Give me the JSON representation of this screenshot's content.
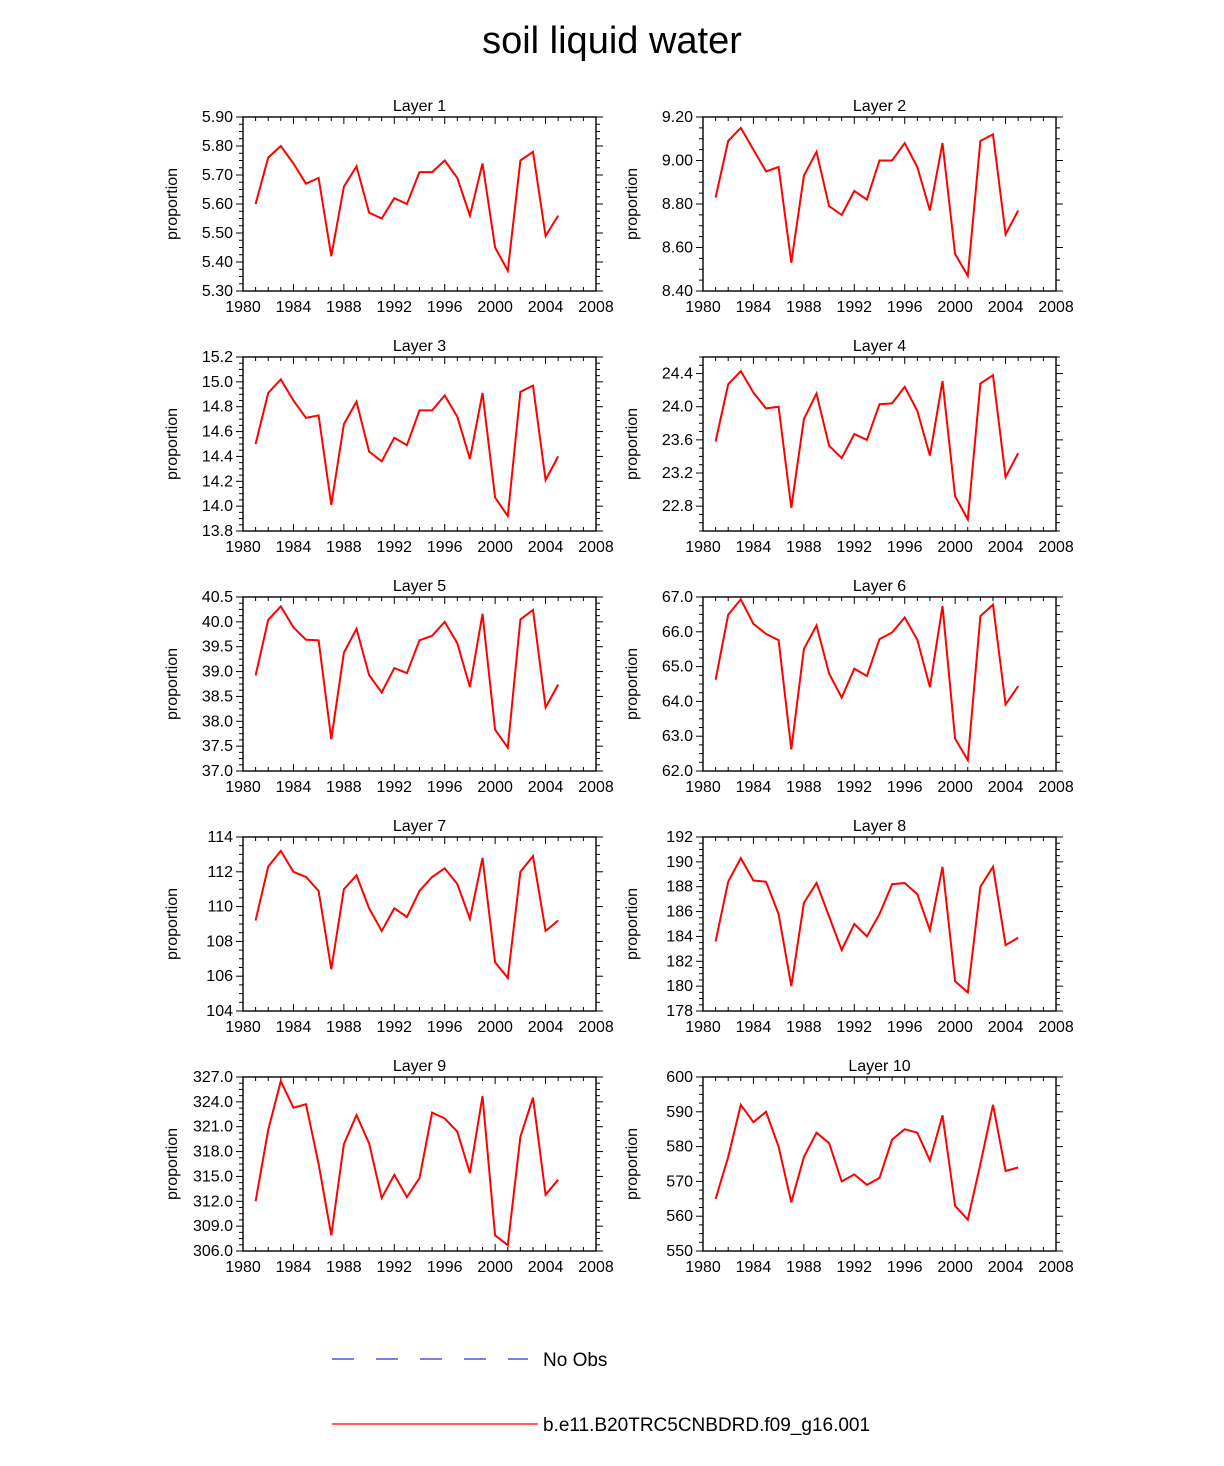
{
  "title": "soil liquid water",
  "colors": {
    "model_line": "#ff0000",
    "obs_line": "#3333cc",
    "axis": "#000000"
  },
  "legend": {
    "obs_label": "No Obs",
    "model_label": "b.e11.B20TRC5CNBDRD.f09_g16.001"
  },
  "chart_data": [
    {
      "type": "line",
      "title": "Layer 1",
      "ylabel": "proportion",
      "xlim": [
        1980,
        2008
      ],
      "ylim": [
        5.3,
        5.9
      ],
      "decimals": 2,
      "yticks": [
        5.3,
        5.4,
        5.5,
        5.6,
        5.7,
        5.8,
        5.9
      ],
      "xticks": [
        1980,
        1984,
        1988,
        1992,
        1996,
        2000,
        2004,
        2008
      ],
      "series": [
        {
          "name": "b.e11.B20TRC5CNBDRD.f09_g16.001",
          "x": [
            1981,
            1982,
            1983,
            1984,
            1985,
            1986,
            1987,
            1988,
            1989,
            1990,
            1991,
            1992,
            1993,
            1994,
            1995,
            1996,
            1997,
            1998,
            1999,
            2000,
            2001,
            2002,
            2003,
            2004,
            2005
          ],
          "values": [
            5.6,
            5.76,
            5.8,
            5.74,
            5.67,
            5.69,
            5.42,
            5.66,
            5.73,
            5.57,
            5.55,
            5.62,
            5.6,
            5.71,
            5.71,
            5.75,
            5.69,
            5.56,
            5.74,
            5.45,
            5.37,
            5.75,
            5.78,
            5.49,
            5.56
          ]
        }
      ]
    },
    {
      "type": "line",
      "title": "Layer 2",
      "ylabel": "proportion",
      "xlim": [
        1980,
        2008
      ],
      "ylim": [
        8.4,
        9.2
      ],
      "decimals": 2,
      "yticks": [
        8.4,
        8.6,
        8.8,
        9.0,
        9.2
      ],
      "xticks": [
        1980,
        1984,
        1988,
        1992,
        1996,
        2000,
        2004,
        2008
      ],
      "series": [
        {
          "name": "b.e11.B20TRC5CNBDRD.f09_g16.001",
          "x": [
            1981,
            1982,
            1983,
            1984,
            1985,
            1986,
            1987,
            1988,
            1989,
            1990,
            1991,
            1992,
            1993,
            1994,
            1995,
            1996,
            1997,
            1998,
            1999,
            2000,
            2001,
            2002,
            2003,
            2004,
            2005
          ],
          "values": [
            8.83,
            9.09,
            9.15,
            9.05,
            8.95,
            8.97,
            8.53,
            8.93,
            9.04,
            8.79,
            8.75,
            8.86,
            8.82,
            9.0,
            9.0,
            9.08,
            8.97,
            8.77,
            9.08,
            8.57,
            8.47,
            9.09,
            9.12,
            8.66,
            8.77
          ]
        }
      ]
    },
    {
      "type": "line",
      "title": "Layer 3",
      "ylabel": "proportion",
      "xlim": [
        1980,
        2008
      ],
      "ylim": [
        13.8,
        15.2
      ],
      "decimals": 1,
      "yticks": [
        13.8,
        14.0,
        14.2,
        14.4,
        14.6,
        14.8,
        15.0,
        15.2
      ],
      "xticks": [
        1980,
        1984,
        1988,
        1992,
        1996,
        2000,
        2004,
        2008
      ],
      "series": [
        {
          "name": "b.e11.B20TRC5CNBDRD.f09_g16.001",
          "x": [
            1981,
            1982,
            1983,
            1984,
            1985,
            1986,
            1987,
            1988,
            1989,
            1990,
            1991,
            1992,
            1993,
            1994,
            1995,
            1996,
            1997,
            1998,
            1999,
            2000,
            2001,
            2002,
            2003,
            2004,
            2005
          ],
          "values": [
            14.5,
            14.91,
            15.02,
            14.85,
            14.71,
            14.73,
            14.01,
            14.66,
            14.84,
            14.44,
            14.36,
            14.55,
            14.49,
            14.77,
            14.77,
            14.89,
            14.72,
            14.38,
            14.91,
            14.07,
            13.92,
            14.92,
            14.97,
            14.21,
            14.4
          ]
        }
      ]
    },
    {
      "type": "line",
      "title": "Layer 4",
      "ylabel": "proportion",
      "xlim": [
        1980,
        2008
      ],
      "ylim": [
        22.5,
        24.6
      ],
      "decimals": 1,
      "yticks": [
        22.8,
        23.2,
        23.6,
        24.0,
        24.4
      ],
      "xticks": [
        1980,
        1984,
        1988,
        1992,
        1996,
        2000,
        2004,
        2008
      ],
      "series": [
        {
          "name": "b.e11.B20TRC5CNBDRD.f09_g16.001",
          "x": [
            1981,
            1982,
            1983,
            1984,
            1985,
            1986,
            1987,
            1988,
            1989,
            1990,
            1991,
            1992,
            1993,
            1994,
            1995,
            1996,
            1997,
            1998,
            1999,
            2000,
            2001,
            2002,
            2003,
            2004,
            2005
          ],
          "values": [
            23.58,
            24.27,
            24.43,
            24.17,
            23.98,
            24.0,
            22.78,
            23.85,
            24.16,
            23.53,
            23.38,
            23.67,
            23.6,
            24.03,
            24.04,
            24.24,
            23.95,
            23.41,
            24.31,
            22.92,
            22.64,
            24.28,
            24.38,
            23.15,
            23.44
          ]
        }
      ]
    },
    {
      "type": "line",
      "title": "Layer 5",
      "ylabel": "proportion",
      "xlim": [
        1980,
        2008
      ],
      "ylim": [
        37.0,
        40.5
      ],
      "decimals": 1,
      "yticks": [
        37.0,
        37.5,
        38.0,
        38.5,
        39.0,
        39.5,
        40.0,
        40.5
      ],
      "xticks": [
        1980,
        1984,
        1988,
        1992,
        1996,
        2000,
        2004,
        2008
      ],
      "series": [
        {
          "name": "b.e11.B20TRC5CNBDRD.f09_g16.001",
          "x": [
            1981,
            1982,
            1983,
            1984,
            1985,
            1986,
            1987,
            1988,
            1989,
            1990,
            1991,
            1992,
            1993,
            1994,
            1995,
            1996,
            1997,
            1998,
            1999,
            2000,
            2001,
            2002,
            2003,
            2004,
            2005
          ],
          "values": [
            38.92,
            40.04,
            40.31,
            39.89,
            39.64,
            39.63,
            37.64,
            39.38,
            39.86,
            38.93,
            38.58,
            39.07,
            38.97,
            39.63,
            39.72,
            40.0,
            39.57,
            38.69,
            40.16,
            37.83,
            37.47,
            40.05,
            40.24,
            38.28,
            38.74
          ]
        }
      ]
    },
    {
      "type": "line",
      "title": "Layer 6",
      "ylabel": "proportion",
      "xlim": [
        1980,
        2008
      ],
      "ylim": [
        62.0,
        67.0
      ],
      "decimals": 1,
      "yticks": [
        62.0,
        63.0,
        64.0,
        65.0,
        66.0,
        67.0
      ],
      "xticks": [
        1980,
        1984,
        1988,
        1992,
        1996,
        2000,
        2004,
        2008
      ],
      "series": [
        {
          "name": "b.e11.B20TRC5CNBDRD.f09_g16.001",
          "x": [
            1981,
            1982,
            1983,
            1984,
            1985,
            1986,
            1987,
            1988,
            1989,
            1990,
            1991,
            1992,
            1993,
            1994,
            1995,
            1996,
            1997,
            1998,
            1999,
            2000,
            2001,
            2002,
            2003,
            2004,
            2005
          ],
          "values": [
            64.62,
            66.49,
            66.93,
            66.23,
            65.94,
            65.76,
            62.62,
            65.51,
            66.18,
            64.8,
            64.11,
            64.94,
            64.73,
            65.79,
            65.98,
            66.41,
            65.77,
            64.41,
            66.74,
            62.93,
            62.31,
            66.45,
            66.78,
            63.91,
            64.44
          ]
        }
      ]
    },
    {
      "type": "line",
      "title": "Layer 7",
      "ylabel": "proportion",
      "xlim": [
        1980,
        2008
      ],
      "ylim": [
        104,
        114
      ],
      "decimals": 0,
      "yticks": [
        104,
        106,
        108,
        110,
        112,
        114
      ],
      "xticks": [
        1980,
        1984,
        1988,
        1992,
        1996,
        2000,
        2004,
        2008
      ],
      "series": [
        {
          "name": "b.e11.B20TRC5CNBDRD.f09_g16.001",
          "x": [
            1981,
            1982,
            1983,
            1984,
            1985,
            1986,
            1987,
            1988,
            1989,
            1990,
            1991,
            1992,
            1993,
            1994,
            1995,
            1996,
            1997,
            1998,
            1999,
            2000,
            2001,
            2002,
            2003,
            2004,
            2005
          ],
          "values": [
            109.2,
            112.3,
            113.2,
            112.0,
            111.7,
            110.9,
            106.4,
            111.0,
            111.8,
            109.9,
            108.6,
            109.9,
            109.4,
            110.9,
            111.7,
            112.2,
            111.3,
            109.3,
            112.8,
            106.8,
            105.9,
            112.0,
            112.9,
            108.6,
            109.2
          ]
        }
      ]
    },
    {
      "type": "line",
      "title": "Layer 8",
      "ylabel": "proportion",
      "xlim": [
        1980,
        2008
      ],
      "ylim": [
        178,
        192
      ],
      "decimals": 0,
      "yticks": [
        178,
        180,
        182,
        184,
        186,
        188,
        190,
        192
      ],
      "xticks": [
        1980,
        1984,
        1988,
        1992,
        1996,
        2000,
        2004,
        2008
      ],
      "series": [
        {
          "name": "b.e11.B20TRC5CNBDRD.f09_g16.001",
          "x": [
            1981,
            1982,
            1983,
            1984,
            1985,
            1986,
            1987,
            1988,
            1989,
            1990,
            1991,
            1992,
            1993,
            1994,
            1995,
            1996,
            1997,
            1998,
            1999,
            2000,
            2001,
            2002,
            2003,
            2004,
            2005
          ],
          "values": [
            183.6,
            188.4,
            190.3,
            188.5,
            188.4,
            185.8,
            180.0,
            186.7,
            188.3,
            185.6,
            182.9,
            185.0,
            184.0,
            185.8,
            188.2,
            188.3,
            187.4,
            184.5,
            189.6,
            180.4,
            179.5,
            188.0,
            189.6,
            183.3,
            183.9
          ]
        }
      ]
    },
    {
      "type": "line",
      "title": "Layer 9",
      "ylabel": "proportion",
      "xlim": [
        1980,
        2008
      ],
      "ylim": [
        306.0,
        327.0
      ],
      "decimals": 1,
      "yticks": [
        306.0,
        309.0,
        312.0,
        315.0,
        318.0,
        321.0,
        324.0,
        327.0
      ],
      "xticks": [
        1980,
        1984,
        1988,
        1992,
        1996,
        2000,
        2004,
        2008
      ],
      "series": [
        {
          "name": "b.e11.B20TRC5CNBDRD.f09_g16.001",
          "x": [
            1981,
            1982,
            1983,
            1984,
            1985,
            1986,
            1987,
            1988,
            1989,
            1990,
            1991,
            1992,
            1993,
            1994,
            1995,
            1996,
            1997,
            1998,
            1999,
            2000,
            2001,
            2002,
            2003,
            2004,
            2005
          ],
          "values": [
            312.0,
            320.6,
            326.5,
            323.3,
            323.7,
            316.5,
            307.9,
            318.9,
            322.4,
            319.0,
            312.4,
            315.2,
            312.5,
            314.8,
            322.7,
            322.0,
            320.4,
            315.4,
            324.7,
            307.9,
            306.7,
            319.8,
            324.5,
            312.8,
            314.6
          ]
        }
      ]
    },
    {
      "type": "line",
      "title": "Layer 10",
      "ylabel": "proportion",
      "xlim": [
        1980,
        2008
      ],
      "ylim": [
        550,
        600
      ],
      "decimals": 0,
      "yticks": [
        550,
        560,
        570,
        580,
        590,
        600
      ],
      "xticks": [
        1980,
        1984,
        1988,
        1992,
        1996,
        2000,
        2004,
        2008
      ],
      "series": [
        {
          "name": "b.e11.B20TRC5CNBDRD.f09_g16.001",
          "x": [
            1981,
            1982,
            1983,
            1984,
            1985,
            1986,
            1987,
            1988,
            1989,
            1990,
            1991,
            1992,
            1993,
            1994,
            1995,
            1996,
            1997,
            1998,
            1999,
            2000,
            2001,
            2002,
            2003,
            2004,
            2005
          ],
          "values": [
            565,
            577,
            592,
            587,
            590,
            580,
            564,
            577,
            584,
            581,
            570,
            572,
            569,
            571,
            582,
            585,
            584,
            576,
            589,
            563,
            559,
            575,
            592,
            573,
            574
          ]
        }
      ]
    }
  ]
}
